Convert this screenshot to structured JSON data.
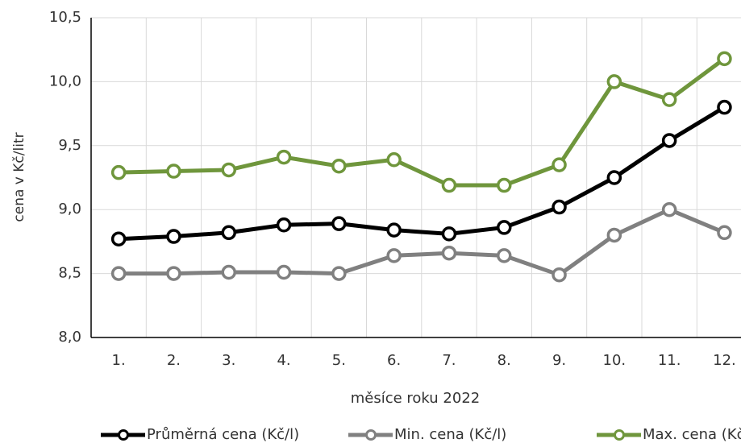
{
  "chart_data": {
    "type": "line",
    "x_label": "měsíce roku 2022",
    "y_label": "cena v Kč/litr",
    "categories": [
      "1.",
      "2.",
      "3.",
      "4.",
      "5.",
      "6.",
      "7.",
      "8.",
      "9.",
      "10.",
      "11.",
      "12."
    ],
    "series": [
      {
        "name": "Průměrná cena (Kč/l)",
        "color": "#000000",
        "values": [
          8.77,
          8.79,
          8.82,
          8.88,
          8.89,
          8.84,
          8.81,
          8.86,
          9.02,
          9.25,
          9.54,
          9.8
        ]
      },
      {
        "name": "Min. cena (Kč/l)",
        "color": "#808080",
        "values": [
          8.5,
          8.5,
          8.51,
          8.51,
          8.5,
          8.64,
          8.66,
          8.64,
          8.49,
          8.8,
          9.0,
          8.82
        ]
      },
      {
        "name": "Max. cena (Kč/l)",
        "color": "#6f963c",
        "values": [
          9.29,
          9.3,
          9.31,
          9.41,
          9.34,
          9.39,
          9.19,
          9.19,
          9.35,
          10.0,
          9.86,
          10.18
        ]
      }
    ],
    "ylim": [
      8,
      10.5
    ],
    "yticks": [
      {
        "value": 8,
        "label": "8,0"
      },
      {
        "value": 8.5,
        "label": "8,5"
      },
      {
        "value": 9,
        "label": "9,0"
      },
      {
        "value": 9.5,
        "label": "9,5"
      },
      {
        "value": 10,
        "label": "10,0"
      },
      {
        "value": 10.5,
        "label": "10,5"
      }
    ],
    "grid": true,
    "legend": "bottom"
  }
}
